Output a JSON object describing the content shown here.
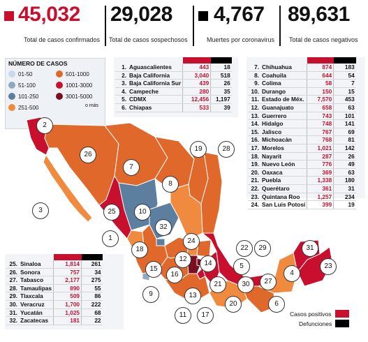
{
  "stats": [
    {
      "value": "45,032",
      "label": "Total de casos confirmados",
      "color": "#c8102e"
    },
    {
      "value": "29,028",
      "label": "Total de casos sospechosos"
    },
    {
      "value": "4,767",
      "label": "Muertes por coronavirus",
      "color": "#000000"
    },
    {
      "value": "89,631",
      "label": "Total de casos negativos"
    }
  ],
  "legend": {
    "title": "NÚMERO DE CASOS",
    "items": [
      {
        "label": "01-50",
        "color": "#c9d9ea"
      },
      {
        "label": "51-100",
        "color": "#8fa9c1"
      },
      {
        "label": "101-250",
        "color": "#5d7f9f"
      },
      {
        "label": "251-500",
        "color": "#f08a3e"
      },
      {
        "label": "501-1000",
        "color": "#e0682a"
      },
      {
        "label": "1001-3000",
        "color": "#c8102e"
      },
      {
        "label": "3001-5000",
        "color": "#7a0f22"
      }
    ],
    "more": "o más"
  },
  "tables": {
    "a": [
      {
        "n": "1.",
        "name": "Aguascalientes",
        "pos": "443",
        "def": "18"
      },
      {
        "n": "2.",
        "name": "Baja California",
        "pos": "3,040",
        "def": "518"
      },
      {
        "n": "3.",
        "name": "Baja California Sur",
        "pos": "439",
        "def": "26"
      },
      {
        "n": "4.",
        "name": "Campeche",
        "pos": "280",
        "def": "35"
      },
      {
        "n": "5.",
        "name": "CDMX",
        "pos": "12,456",
        "def": "1,197"
      },
      {
        "n": "6.",
        "name": "Chiapas",
        "pos": "533",
        "def": "39"
      }
    ],
    "b": [
      {
        "n": "7.",
        "name": "Chihuahua",
        "pos": "874",
        "def": "183"
      },
      {
        "n": "8.",
        "name": "Coahuila",
        "pos": "644",
        "def": "54"
      },
      {
        "n": "9.",
        "name": "Colima",
        "pos": "58",
        "def": "7"
      },
      {
        "n": "10.",
        "name": "Durango",
        "pos": "150",
        "def": "15"
      },
      {
        "n": "11.",
        "name": "Estado de Méx.",
        "pos": "7,570",
        "def": "453"
      },
      {
        "n": "12.",
        "name": "Guanajuato",
        "pos": "658",
        "def": "63"
      },
      {
        "n": "13.",
        "name": "Guerrero",
        "pos": "743",
        "def": "101"
      },
      {
        "n": "14.",
        "name": "Hidalgo",
        "pos": "748",
        "def": "141"
      },
      {
        "n": "15.",
        "name": "Jalisco",
        "pos": "767",
        "def": "69"
      },
      {
        "n": "16.",
        "name": "Michoacán",
        "pos": "768",
        "def": "81"
      },
      {
        "n": "17.",
        "name": "Morelos",
        "pos": "1,021",
        "def": "142"
      },
      {
        "n": "18.",
        "name": "Nayarit",
        "pos": "287",
        "def": "26"
      },
      {
        "n": "19.",
        "name": "Nuevo León",
        "pos": "776",
        "def": "49"
      },
      {
        "n": "20.",
        "name": "Oaxaca",
        "pos": "369",
        "def": "63"
      },
      {
        "n": "21.",
        "name": "Puebla",
        "pos": "1,338",
        "def": "180"
      },
      {
        "n": "22.",
        "name": "Querétaro",
        "pos": "361",
        "def": "31"
      },
      {
        "n": "23.",
        "name": "Quintana Roo",
        "pos": "1,257",
        "def": "234"
      },
      {
        "n": "24.",
        "name": "San Luis Potosí",
        "pos": "399",
        "def": "19"
      }
    ],
    "c": [
      {
        "n": "25.",
        "name": "Sinaloa",
        "pos": "1,814",
        "def": "261"
      },
      {
        "n": "26.",
        "name": "Sonora",
        "pos": "757",
        "def": "34"
      },
      {
        "n": "27.",
        "name": "Tabasco",
        "pos": "2,177",
        "def": "275"
      },
      {
        "n": "28.",
        "name": "Tamaulipas",
        "pos": "890",
        "def": "55"
      },
      {
        "n": "29.",
        "name": "Tlaxcala",
        "pos": "509",
        "def": "86"
      },
      {
        "n": "30.",
        "name": "Veracruz",
        "pos": "1,700",
        "def": "222"
      },
      {
        "n": "31.",
        "name": "Yucatán",
        "pos": "1,025",
        "def": "68"
      },
      {
        "n": "32.",
        "name": "Zacatecas",
        "pos": "181",
        "def": "22"
      }
    ]
  },
  "map_labels": [
    "1",
    "2",
    "3",
    "4",
    "5",
    "6",
    "7",
    "8",
    "9",
    "10",
    "11",
    "12",
    "13",
    "14",
    "15",
    "16",
    "17",
    "18",
    "19",
    "20",
    "21",
    "22",
    "23",
    "24",
    "25",
    "26",
    "27",
    "28",
    "29",
    "30",
    "31",
    "32"
  ],
  "map_legend": {
    "positive": "Casos positivos",
    "deaths": "Defunciones"
  }
}
